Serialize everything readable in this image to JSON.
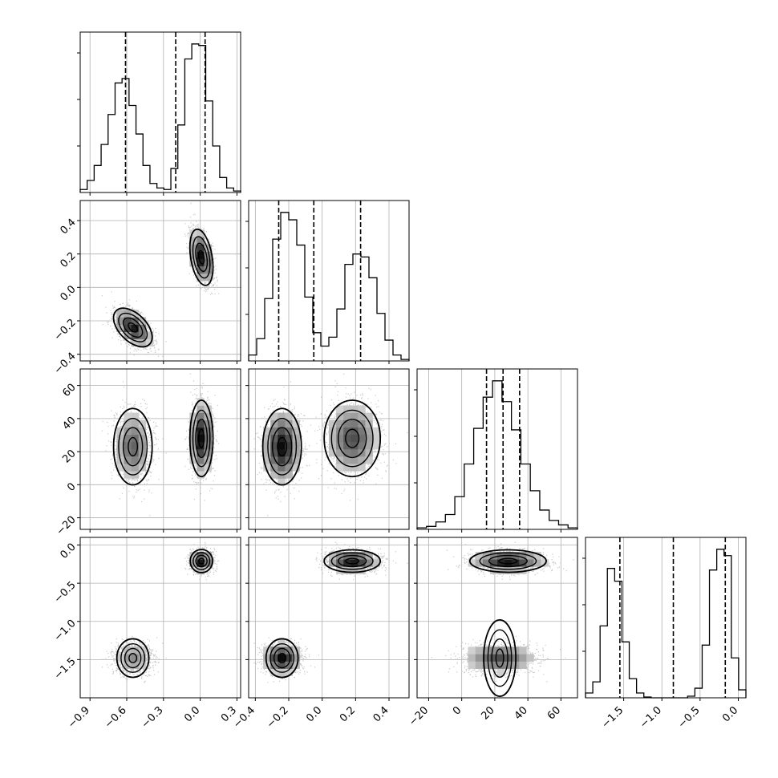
{
  "chart_data": {
    "type": "corner",
    "grid": true,
    "parameters": [
      {
        "range": [
          -0.98,
          0.33
        ],
        "ticks": [
          -0.9,
          -0.6,
          -0.3,
          0.0,
          0.3
        ],
        "tick_labels": [
          "−0.9",
          "−0.6",
          "−0.3",
          "0.0",
          "0.3"
        ],
        "quantiles": [
          -0.61,
          -0.2,
          0.04
        ],
        "hist_counts": [
          0.2,
          0.8,
          1.8,
          3.2,
          5.2,
          7.3,
          7.6,
          5.8,
          3.9,
          1.8,
          0.6,
          0.3,
          0.2,
          1.6,
          4.5,
          8.9,
          9.9,
          9.8,
          6.1,
          3.1,
          1.0,
          0.3,
          0.1
        ]
      },
      {
        "range": [
          -0.44,
          0.52
        ],
        "ticks": [
          -0.4,
          -0.2,
          0.0,
          0.2,
          0.4
        ],
        "tick_labels": [
          "−0.4",
          "−0.2",
          "0.0",
          "0.2",
          "0.4"
        ],
        "quantiles": [
          -0.26,
          -0.05,
          0.23
        ],
        "hist_counts": [
          0.4,
          1.5,
          4.2,
          8.2,
          10.0,
          9.5,
          7.8,
          4.3,
          1.9,
          1.0,
          1.6,
          3.5,
          6.5,
          7.2,
          7.0,
          5.6,
          3.2,
          1.4,
          0.4,
          0.1
        ]
      },
      {
        "range": [
          -27,
          70
        ],
        "ticks": [
          -20,
          0,
          20,
          40,
          60
        ],
        "tick_labels": [
          "−20",
          "0",
          "20",
          "40",
          "60"
        ],
        "quantiles": [
          15,
          25,
          35
        ],
        "hist_counts": [
          0.1,
          0.2,
          0.5,
          1.0,
          2.2,
          4.4,
          6.8,
          8.9,
          10.0,
          8.6,
          6.7,
          4.4,
          2.6,
          1.3,
          0.6,
          0.3,
          0.1
        ]
      },
      {
        "range": [
          -2.0,
          0.1
        ],
        "ticks": [
          -1.5,
          -1.0,
          -0.5,
          0.0
        ],
        "tick_labels": [
          "−1.5",
          "−1.0",
          "−0.5",
          "0.0"
        ],
        "quantiles": [
          -1.55,
          -0.85,
          -0.17
        ],
        "hist_counts": [
          0.3,
          1.0,
          4.5,
          8.1,
          7.3,
          3.5,
          1.2,
          0.3,
          0.05,
          0,
          0,
          0,
          0,
          0,
          0.1,
          0.6,
          3.3,
          8.0,
          9.3,
          8.9,
          2.5,
          0.5
        ]
      }
    ],
    "modes": [
      {
        "mean": [
          -0.55,
          -0.24,
          23,
          -1.48
        ],
        "sd": [
          0.075,
          0.055,
          11,
          0.1
        ],
        "weight": 0.5
      },
      {
        "mean": [
          0.01,
          0.18,
          28,
          -0.21
        ],
        "sd": [
          0.045,
          0.08,
          11,
          0.07
        ],
        "weight": 0.5
      }
    ],
    "pair_correlations": {
      "0-1": -0.5
    },
    "samples_per_mode": 3000
  }
}
